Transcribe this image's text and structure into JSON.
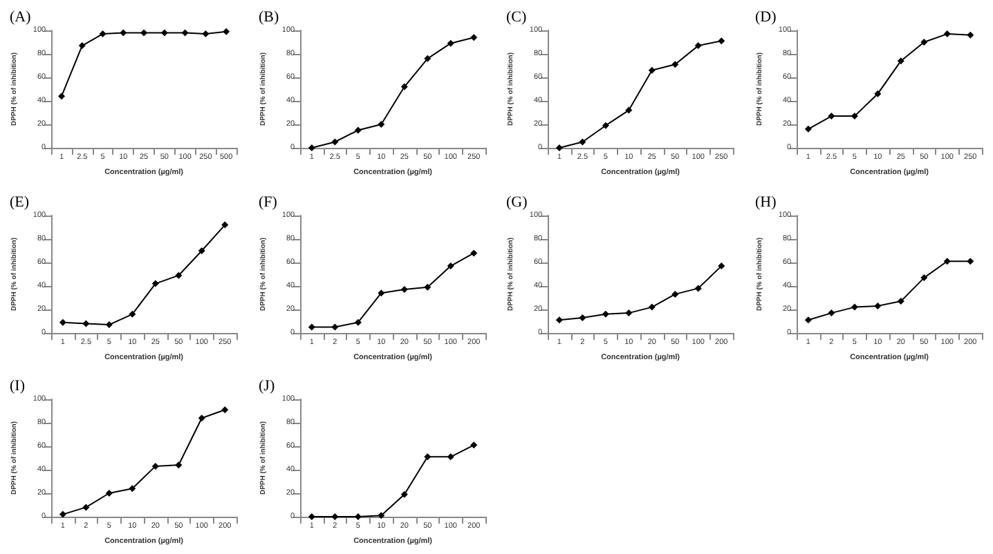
{
  "chart_data": [
    {
      "type": "line",
      "title": "(A)",
      "xlabel": "Concentration (µg/ml)",
      "ylabel": "DPPH (% of inhibition)",
      "categories": [
        "1",
        "2.5",
        "5",
        "10",
        "25",
        "50",
        "100",
        "250",
        "500"
      ],
      "series": [
        {
          "color": "#000000",
          "values": [
            44,
            87,
            97,
            98,
            98,
            98,
            98,
            97,
            99
          ]
        }
      ],
      "ylim": [
        0,
        100
      ],
      "yticks": [
        0,
        20,
        40,
        60,
        80,
        100
      ],
      "grid": false,
      "marker": "diamond",
      "line_style": "solid"
    },
    {
      "type": "line",
      "title": "(B)",
      "xlabel": "Concentration (µg/ml)",
      "ylabel": "DPPH (% of inhibition)",
      "categories": [
        "1",
        "2.5",
        "5",
        "10",
        "25",
        "50",
        "100",
        "250"
      ],
      "series": [
        {
          "color": "#000000",
          "values": [
            0,
            5,
            15,
            20,
            52,
            76,
            89,
            94
          ]
        }
      ],
      "ylim": [
        0,
        100
      ],
      "yticks": [
        0,
        20,
        40,
        60,
        80,
        100
      ],
      "grid": false,
      "marker": "diamond",
      "line_style": "solid"
    },
    {
      "type": "line",
      "title": "(C)",
      "xlabel": "Concentration (µg/ml)",
      "ylabel": "DPPH (% of inhibition)",
      "categories": [
        "1",
        "2.5",
        "5",
        "10",
        "25",
        "50",
        "100",
        "250"
      ],
      "series": [
        {
          "color": "#000000",
          "values": [
            0,
            5,
            19,
            32,
            66,
            71,
            87,
            91
          ]
        }
      ],
      "ylim": [
        0,
        100
      ],
      "yticks": [
        0,
        20,
        40,
        60,
        80,
        100
      ],
      "grid": false,
      "marker": "diamond",
      "line_style": "solid"
    },
    {
      "type": "line",
      "title": "(D)",
      "xlabel": "Concentration (µg/ml)",
      "ylabel": "DPPH (% of inhibition)",
      "categories": [
        "1",
        "2.5",
        "5",
        "10",
        "25",
        "50",
        "100",
        "250"
      ],
      "series": [
        {
          "color": "#000000",
          "values": [
            16,
            27,
            27,
            46,
            74,
            90,
            97,
            96
          ]
        }
      ],
      "ylim": [
        0,
        100
      ],
      "yticks": [
        0,
        20,
        40,
        60,
        80,
        100
      ],
      "grid": false,
      "marker": "diamond",
      "line_style": "solid"
    },
    {
      "type": "line",
      "title": "(E)",
      "xlabel": "Concentration (µg/ml)",
      "ylabel": "DPPH (% of inhibition)",
      "categories": [
        "1",
        "2.5",
        "5",
        "10",
        "25",
        "50",
        "100",
        "250"
      ],
      "series": [
        {
          "color": "#000000",
          "values": [
            9,
            8,
            7,
            16,
            42,
            49,
            70,
            92
          ]
        }
      ],
      "ylim": [
        0,
        100
      ],
      "yticks": [
        0,
        20,
        40,
        60,
        80,
        100
      ],
      "grid": false,
      "marker": "diamond",
      "line_style": "solid"
    },
    {
      "type": "line",
      "title": "(F)",
      "xlabel": "Concentration (µg/ml)",
      "ylabel": "DPPH (% of inhibition)",
      "categories": [
        "1",
        "2",
        "5",
        "10",
        "20",
        "50",
        "100",
        "200"
      ],
      "series": [
        {
          "color": "#000000",
          "values": [
            5,
            5,
            9,
            34,
            37,
            39,
            57,
            68
          ]
        }
      ],
      "ylim": [
        0,
        100
      ],
      "yticks": [
        0,
        20,
        40,
        60,
        80,
        100
      ],
      "grid": false,
      "marker": "diamond",
      "line_style": "solid"
    },
    {
      "type": "line",
      "title": "(G)",
      "xlabel": "Concentration (µg/ml)",
      "ylabel": "DPPH (% of inhibition)",
      "categories": [
        "1",
        "2",
        "5",
        "10",
        "20",
        "50",
        "100",
        "200"
      ],
      "series": [
        {
          "color": "#000000",
          "values": [
            11,
            13,
            16,
            17,
            22,
            33,
            38,
            57
          ]
        }
      ],
      "ylim": [
        0,
        100
      ],
      "yticks": [
        0,
        20,
        40,
        60,
        80,
        100
      ],
      "grid": false,
      "marker": "diamond",
      "line_style": "solid"
    },
    {
      "type": "line",
      "title": "(H)",
      "xlabel": "Concentration (µg/ml)",
      "ylabel": "DPPH (% of inhibition)",
      "categories": [
        "1",
        "2",
        "5",
        "10",
        "20",
        "50",
        "100",
        "200"
      ],
      "series": [
        {
          "color": "#000000",
          "values": [
            11,
            17,
            22,
            23,
            27,
            47,
            61,
            61
          ]
        }
      ],
      "ylim": [
        0,
        100
      ],
      "yticks": [
        0,
        20,
        40,
        60,
        80,
        100
      ],
      "grid": false,
      "marker": "diamond",
      "line_style": "solid"
    },
    {
      "type": "line",
      "title": "(I)",
      "xlabel": "Concentration (µg/ml)",
      "ylabel": "DPPH (% of inhibition)",
      "categories": [
        "1",
        "2",
        "5",
        "10",
        "20",
        "50",
        "100",
        "200"
      ],
      "series": [
        {
          "color": "#000000",
          "values": [
            2,
            8,
            20,
            24,
            43,
            44,
            84,
            91
          ]
        }
      ],
      "ylim": [
        0,
        100
      ],
      "yticks": [
        0,
        20,
        40,
        60,
        80,
        100
      ],
      "grid": false,
      "marker": "diamond",
      "line_style": "solid"
    },
    {
      "type": "line",
      "title": "(J)",
      "xlabel": "Concentration (µg/ml)",
      "ylabel": "DPPH (% of inhibition)",
      "categories": [
        "1",
        "2",
        "5",
        "10",
        "20",
        "50",
        "100",
        "200"
      ],
      "series": [
        {
          "color": "#000000",
          "values": [
            0,
            0,
            0,
            1,
            19,
            51,
            51,
            61
          ]
        }
      ],
      "ylim": [
        0,
        100
      ],
      "yticks": [
        0,
        20,
        40,
        60,
        80,
        100
      ],
      "grid": false,
      "marker": "diamond",
      "line_style": "solid"
    }
  ]
}
